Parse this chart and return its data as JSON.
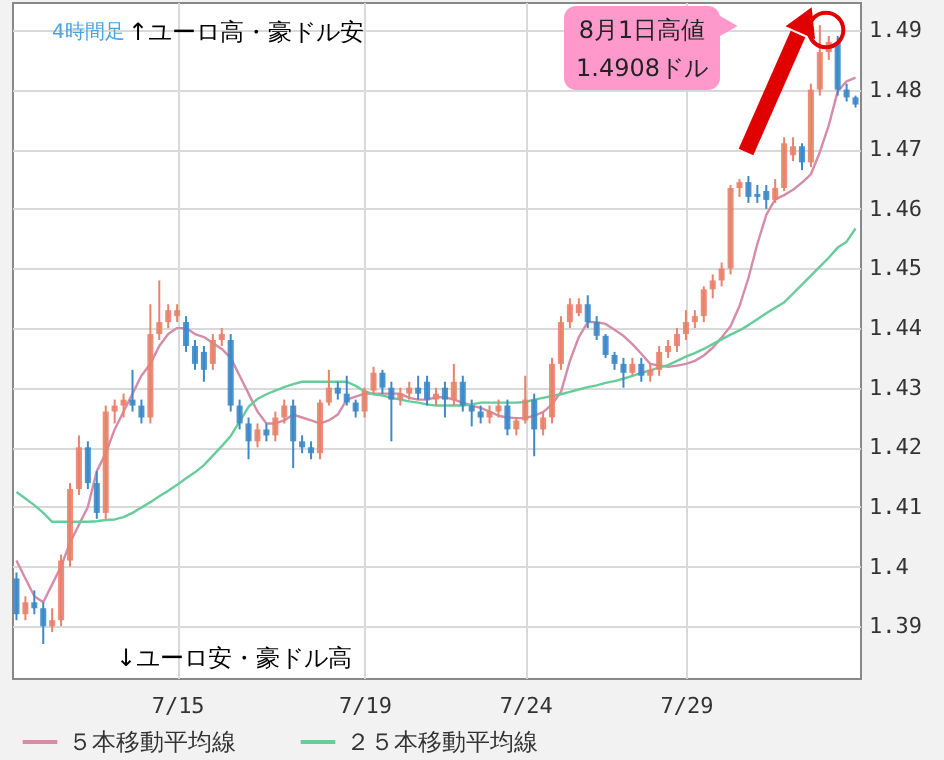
{
  "chart_data": {
    "type": "candlestick",
    "categories": [
      null,
      null,
      null,
      null,
      null,
      null,
      null,
      null,
      null,
      null,
      null,
      null,
      null,
      null,
      null,
      null,
      null,
      null,
      "7/15",
      null,
      null,
      null,
      null,
      null,
      null,
      null,
      null,
      null,
      null,
      null,
      null,
      null,
      null,
      null,
      null,
      null,
      null,
      null,
      null,
      "7/19",
      null,
      null,
      null,
      null,
      null,
      null,
      null,
      null,
      null,
      null,
      null,
      null,
      null,
      null,
      null,
      null,
      null,
      "7/24",
      null,
      null,
      null,
      null,
      null,
      null,
      null,
      null,
      null,
      null,
      null,
      null,
      null,
      null,
      null,
      null,
      null,
      "7/29",
      null,
      null,
      null,
      null,
      null,
      null,
      null,
      null,
      null,
      null,
      null,
      null,
      null,
      null,
      null,
      null,
      null,
      null,
      null
    ],
    "ohlc": [
      [
        1.398,
        1.399,
        1.391,
        1.392
      ],
      [
        1.392,
        1.395,
        1.391,
        1.394
      ],
      [
        1.394,
        1.396,
        1.392,
        1.393
      ],
      [
        1.393,
        1.394,
        1.387,
        1.39
      ],
      [
        1.39,
        1.393,
        1.389,
        1.391
      ],
      [
        1.391,
        1.402,
        1.39,
        1.401
      ],
      [
        1.401,
        1.414,
        1.4,
        1.413
      ],
      [
        1.413,
        1.422,
        1.412,
        1.42
      ],
      [
        1.42,
        1.421,
        1.413,
        1.414
      ],
      [
        1.414,
        1.416,
        1.408,
        1.409
      ],
      [
        1.409,
        1.427,
        1.408,
        1.426
      ],
      [
        1.426,
        1.428,
        1.424,
        1.427
      ],
      [
        1.427,
        1.429,
        1.425,
        1.428
      ],
      [
        1.428,
        1.433,
        1.426,
        1.427
      ],
      [
        1.427,
        1.428,
        1.424,
        1.425
      ],
      [
        1.425,
        1.444,
        1.424,
        1.439
      ],
      [
        1.439,
        1.448,
        1.438,
        1.441
      ],
      [
        1.441,
        1.444,
        1.44,
        1.443
      ],
      [
        1.442,
        1.444,
        1.441,
        1.443
      ],
      [
        1.441,
        1.442,
        1.436,
        1.437
      ],
      [
        1.437,
        1.438,
        1.433,
        1.434
      ],
      [
        1.436,
        1.437,
        1.431,
        1.433
      ],
      [
        1.434,
        1.439,
        1.433,
        1.438
      ],
      [
        1.438,
        1.44,
        1.437,
        1.439
      ],
      [
        1.438,
        1.439,
        1.426,
        1.427
      ],
      [
        1.427,
        1.428,
        1.423,
        1.424
      ],
      [
        1.424,
        1.425,
        1.418,
        1.421
      ],
      [
        1.421,
        1.424,
        1.42,
        1.423
      ],
      [
        1.423,
        1.424,
        1.421,
        1.422
      ],
      [
        1.422,
        1.426,
        1.421,
        1.425
      ],
      [
        1.425,
        1.428,
        1.424,
        1.427
      ],
      [
        1.427,
        1.428,
        1.4165,
        1.421
      ],
      [
        1.421,
        1.422,
        1.419,
        1.42
      ],
      [
        1.42,
        1.421,
        1.418,
        1.419
      ],
      [
        1.419,
        1.428,
        1.418,
        1.4275
      ],
      [
        1.4275,
        1.433,
        1.427,
        1.43
      ],
      [
        1.43,
        1.431,
        1.428,
        1.429
      ],
      [
        1.429,
        1.432,
        1.427,
        1.4275
      ],
      [
        1.4275,
        1.428,
        1.425,
        1.426
      ],
      [
        1.426,
        1.43,
        1.425,
        1.4295
      ],
      [
        1.4295,
        1.4335,
        1.429,
        1.4325
      ],
      [
        1.4325,
        1.433,
        1.429,
        1.43
      ],
      [
        1.43,
        1.431,
        1.421,
        1.428
      ],
      [
        1.428,
        1.43,
        1.427,
        1.429
      ],
      [
        1.429,
        1.431,
        1.428,
        1.43
      ],
      [
        1.43,
        1.432,
        1.428,
        1.429
      ],
      [
        1.431,
        1.432,
        1.427,
        1.428
      ],
      [
        1.428,
        1.43,
        1.427,
        1.429
      ],
      [
        1.43,
        1.431,
        1.425,
        1.428
      ],
      [
        1.428,
        1.434,
        1.427,
        1.431
      ],
      [
        1.431,
        1.432,
        1.426,
        1.427
      ],
      [
        1.427,
        1.428,
        1.4235,
        1.426
      ],
      [
        1.426,
        1.427,
        1.424,
        1.425
      ],
      [
        1.425,
        1.427,
        1.424,
        1.426
      ],
      [
        1.426,
        1.428,
        1.425,
        1.427
      ],
      [
        1.427,
        1.428,
        1.422,
        1.423
      ],
      [
        1.423,
        1.425,
        1.422,
        1.4245
      ],
      [
        1.4245,
        1.432,
        1.424,
        1.428
      ],
      [
        1.428,
        1.429,
        1.4185,
        1.423
      ],
      [
        1.423,
        1.426,
        1.422,
        1.425
      ],
      [
        1.425,
        1.435,
        1.424,
        1.434
      ],
      [
        1.434,
        1.442,
        1.433,
        1.441
      ],
      [
        1.441,
        1.445,
        1.44,
        1.444
      ],
      [
        1.4425,
        1.445,
        1.442,
        1.444
      ],
      [
        1.444,
        1.4455,
        1.44,
        1.441
      ],
      [
        1.441,
        1.442,
        1.438,
        1.4387
      ],
      [
        1.4387,
        1.439,
        1.435,
        1.4355
      ],
      [
        1.4355,
        1.436,
        1.433,
        1.434
      ],
      [
        1.434,
        1.435,
        1.43,
        1.4325
      ],
      [
        1.4325,
        1.435,
        1.432,
        1.434
      ],
      [
        1.434,
        1.435,
        1.431,
        1.432
      ],
      [
        1.432,
        1.434,
        1.431,
        1.433
      ],
      [
        1.433,
        1.437,
        1.432,
        1.436
      ],
      [
        1.436,
        1.438,
        1.435,
        1.437
      ],
      [
        1.437,
        1.44,
        1.436,
        1.439
      ],
      [
        1.439,
        1.443,
        1.438,
        1.441
      ],
      [
        1.441,
        1.443,
        1.44,
        1.442
      ],
      [
        1.442,
        1.447,
        1.441,
        1.4465
      ],
      [
        1.4465,
        1.449,
        1.445,
        1.448
      ],
      [
        1.448,
        1.451,
        1.447,
        1.45
      ],
      [
        1.45,
        1.464,
        1.449,
        1.4635
      ],
      [
        1.4635,
        1.465,
        1.462,
        1.4645
      ],
      [
        1.4645,
        1.4655,
        1.461,
        1.462
      ],
      [
        1.4625,
        1.464,
        1.461,
        1.462
      ],
      [
        1.463,
        1.464,
        1.46,
        1.4615
      ],
      [
        1.4615,
        1.465,
        1.461,
        1.4635
      ],
      [
        1.4635,
        1.472,
        1.463,
        1.471
      ],
      [
        1.469,
        1.472,
        1.468,
        1.4705
      ],
      [
        1.4705,
        1.471,
        1.4665,
        1.4678
      ],
      [
        1.4678,
        1.481,
        1.467,
        1.48
      ],
      [
        1.48,
        1.4908,
        1.479,
        1.4863
      ],
      [
        1.4863,
        1.489,
        1.485,
        1.488
      ],
      [
        1.488,
        1.489,
        1.479,
        1.48
      ],
      [
        1.48,
        1.481,
        1.478,
        1.4787
      ],
      [
        1.4787,
        1.479,
        1.477,
        1.4775
      ]
    ],
    "colors": [
      "#3d88c8",
      "#e8826b",
      "#3d88c8",
      "#3d88c8",
      "#e8826b",
      "#e8826b",
      "#e8826b",
      "#e8826b",
      "#3d88c8",
      "#3d88c8",
      "#e8826b",
      "#e8826b",
      "#e8826b",
      "#3d88c8",
      "#3d88c8",
      "#e8826b",
      "#e8826b",
      "#e8826b",
      "#e8826b",
      "#3d88c8",
      "#3d88c8",
      "#3d88c8",
      "#e8826b",
      "#e8826b",
      "#3d88c8",
      "#3d88c8",
      "#3d88c8",
      "#e8826b",
      "#3d88c8",
      "#e8826b",
      "#e8826b",
      "#3d88c8",
      "#3d88c8",
      "#3d88c8",
      "#e8826b",
      "#e8826b",
      "#3d88c8",
      "#3d88c8",
      "#3d88c8",
      "#e8826b",
      "#e8826b",
      "#3d88c8",
      "#3d88c8",
      "#e8826b",
      "#e8826b",
      "#3d88c8",
      "#3d88c8",
      "#e8826b",
      "#3d88c8",
      "#e8826b",
      "#3d88c8",
      "#3d88c8",
      "#3d88c8",
      "#e8826b",
      "#e8826b",
      "#3d88c8",
      "#e8826b",
      "#e8826b",
      "#3d88c8",
      "#e8826b",
      "#e8826b",
      "#e8826b",
      "#e8826b",
      "#e8826b",
      "#3d88c8",
      "#3d88c8",
      "#3d88c8",
      "#3d88c8",
      "#3d88c8",
      "#e8826b",
      "#3d88c8",
      "#e8826b",
      "#e8826b",
      "#e8826b",
      "#e8826b",
      "#e8826b",
      "#e8826b",
      "#e8826b",
      "#e8826b",
      "#e8826b",
      "#e8826b",
      "#e8826b",
      "#3d88c8",
      "#3d88c8",
      "#3d88c8",
      "#e8826b",
      "#e8826b",
      "#e8826b",
      "#3d88c8",
      "#e8826b",
      "#e8826b",
      "#e8826b",
      "#3d88c8",
      "#3d88c8",
      "#3d88c8"
    ],
    "series": [
      {
        "name": "５本移動平均線",
        "type": "line",
        "color": "#d48ca8",
        "values": [
          1.401,
          1.398,
          1.395,
          1.394,
          1.397,
          1.4,
          1.404,
          1.407,
          1.41,
          1.416,
          1.419,
          1.423,
          1.426,
          1.429,
          1.432,
          1.434,
          1.437,
          1.439,
          1.44,
          1.44,
          1.439,
          1.4385,
          1.4375,
          1.4365,
          1.435,
          1.432,
          1.429,
          1.426,
          1.424,
          1.424,
          1.4245,
          1.4255,
          1.425,
          1.4245,
          1.424,
          1.4245,
          1.4255,
          1.428,
          1.4285,
          1.429,
          1.429,
          1.429,
          1.429,
          1.429,
          1.4283,
          1.428,
          1.428,
          1.4284,
          1.4284,
          1.428,
          1.4275,
          1.427,
          1.4266,
          1.426,
          1.4253,
          1.425,
          1.4249,
          1.4249,
          1.4253,
          1.4259,
          1.4272,
          1.4293,
          1.4345,
          1.4385,
          1.441,
          1.441,
          1.4407,
          1.4397,
          1.4387,
          1.4373,
          1.4357,
          1.434,
          1.4337,
          1.4335,
          1.4337,
          1.434,
          1.4345,
          1.4354,
          1.4367,
          1.4384,
          1.4403,
          1.4437,
          1.4484,
          1.4541,
          1.459,
          1.4616,
          1.4623,
          1.4632,
          1.4644,
          1.4658,
          1.4695,
          1.474,
          1.4797,
          1.4814,
          1.482
        ]
      },
      {
        "name": "２５本移動平均線",
        "type": "line",
        "color": "#66cc99",
        "values": [
          1.4125,
          1.4114,
          1.4103,
          1.409,
          1.4075,
          1.4075,
          1.4075,
          1.4075,
          1.4075,
          1.4076,
          1.4078,
          1.4079,
          1.4083,
          1.409,
          1.4099,
          1.4108,
          1.4118,
          1.4127,
          1.4137,
          1.4148,
          1.4158,
          1.417,
          1.4186,
          1.4202,
          1.4219,
          1.4243,
          1.4268,
          1.4281,
          1.4289,
          1.4295,
          1.4301,
          1.4306,
          1.431,
          1.431,
          1.431,
          1.431,
          1.431,
          1.431,
          1.4303,
          1.4294,
          1.4289,
          1.4287,
          1.4283,
          1.428,
          1.4277,
          1.4275,
          1.4272,
          1.427,
          1.427,
          1.427,
          1.427,
          1.4272,
          1.4275,
          1.4275,
          1.4275,
          1.4275,
          1.4275,
          1.4276,
          1.428,
          1.4283,
          1.4286,
          1.4289,
          1.4293,
          1.4297,
          1.4301,
          1.4304,
          1.4308,
          1.4311,
          1.4315,
          1.432,
          1.4325,
          1.4329,
          1.4334,
          1.4338,
          1.4345,
          1.4352,
          1.4358,
          1.4365,
          1.4373,
          1.4381,
          1.4389,
          1.4396,
          1.4405,
          1.4415,
          1.4425,
          1.4434,
          1.4443,
          1.4458,
          1.4473,
          1.4488,
          1.4503,
          1.4518,
          1.4535,
          1.4545,
          1.4567
        ]
      }
    ],
    "ylim": [
      1.3813,
      1.4947
    ],
    "yticks": [
      1.39,
      1.4,
      1.41,
      1.42,
      1.43,
      1.44,
      1.45,
      1.46,
      1.47,
      1.48,
      1.49
    ],
    "grid": true,
    "legend": "bottom",
    "annotations": [
      "4時間足",
      "↑ユーロ高・豪ドル安",
      "↓ユーロ安・豪ドル高",
      "8月1日高値\n1.4908ドル"
    ]
  }
}
